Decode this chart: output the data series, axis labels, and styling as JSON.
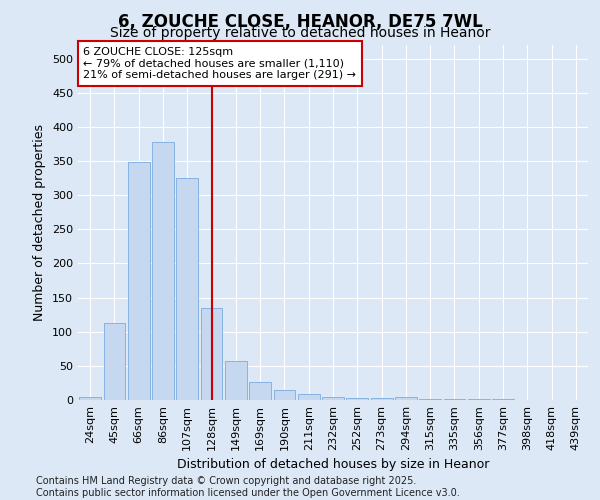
{
  "title": "6, ZOUCHE CLOSE, HEANOR, DE75 7WL",
  "subtitle": "Size of property relative to detached houses in Heanor",
  "xlabel": "Distribution of detached houses by size in Heanor",
  "ylabel": "Number of detached properties",
  "categories": [
    "24sqm",
    "45sqm",
    "66sqm",
    "86sqm",
    "107sqm",
    "128sqm",
    "149sqm",
    "169sqm",
    "190sqm",
    "211sqm",
    "232sqm",
    "252sqm",
    "273sqm",
    "294sqm",
    "315sqm",
    "335sqm",
    "356sqm",
    "377sqm",
    "398sqm",
    "418sqm",
    "439sqm"
  ],
  "values": [
    5,
    113,
    348,
    378,
    325,
    135,
    57,
    26,
    14,
    9,
    5,
    3,
    3,
    5,
    2,
    1,
    1,
    1,
    0,
    0,
    0
  ],
  "bar_color": "#c5d8f0",
  "bar_edge_color": "#7aabe0",
  "background_color": "#dce8f5",
  "grid_color": "#ffffff",
  "vline_x": 5,
  "vline_color": "#cc0000",
  "annotation_line1": "6 ZOUCHE CLOSE: 125sqm",
  "annotation_line2": "← 79% of detached houses are smaller (1,110)",
  "annotation_line3": "21% of semi-detached houses are larger (291) →",
  "title_fontsize": 12,
  "subtitle_fontsize": 10,
  "xlabel_fontsize": 9,
  "ylabel_fontsize": 9,
  "tick_fontsize": 8,
  "annot_fontsize": 8,
  "footer_text": "Contains HM Land Registry data © Crown copyright and database right 2025.\nContains public sector information licensed under the Open Government Licence v3.0.",
  "footer_fontsize": 7,
  "ylim": [
    0,
    520
  ],
  "yticks": [
    0,
    50,
    100,
    150,
    200,
    250,
    300,
    350,
    400,
    450,
    500
  ]
}
